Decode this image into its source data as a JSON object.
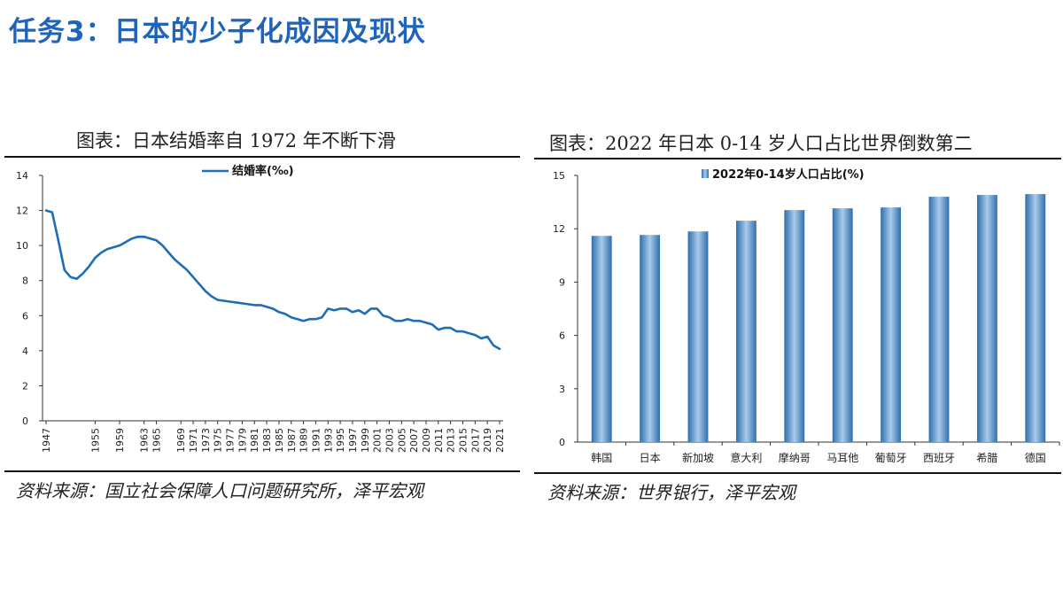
{
  "page": {
    "title": "任务3：日本的少子化成因及现状"
  },
  "left_panel": {
    "caption": "图表：日本结婚率自 1972 年不断下滑",
    "source": "资料来源：国立社会保障人口问题研究所，泽平宏观"
  },
  "right_panel": {
    "caption": "图表：2022 年日本 0-14 岁人口占比世界倒数第二",
    "source": "资料来源：世界银行，泽平宏观"
  },
  "colors": {
    "title": "#1f64b8",
    "line": "#1f6db5",
    "bar_dark": "#2f6fab",
    "bar_light": "#a9cbea"
  },
  "chart_data": [
    {
      "type": "line",
      "title": "",
      "xlabel": "",
      "ylabel": "",
      "ylim": [
        0,
        14
      ],
      "yticks": [
        0,
        2,
        4,
        6,
        8,
        10,
        12,
        14
      ],
      "xlim": [
        1947,
        2021
      ],
      "xticks": [
        1947,
        1955,
        1959,
        1963,
        1965,
        1969,
        1971,
        1973,
        1975,
        1977,
        1979,
        1981,
        1983,
        1985,
        1987,
        1989,
        1991,
        1993,
        1995,
        1997,
        1999,
        2001,
        2003,
        2005,
        2007,
        2009,
        2011,
        2013,
        2015,
        2017,
        2019,
        2021
      ],
      "legend": "top-center",
      "grid": false,
      "series": [
        {
          "name": "结婚率(‰)",
          "x": [
            1947,
            1948,
            1949,
            1950,
            1951,
            1952,
            1953,
            1954,
            1955,
            1956,
            1957,
            1958,
            1959,
            1960,
            1961,
            1962,
            1963,
            1964,
            1965,
            1966,
            1967,
            1968,
            1969,
            1970,
            1971,
            1972,
            1973,
            1974,
            1975,
            1976,
            1977,
            1978,
            1979,
            1980,
            1981,
            1982,
            1983,
            1984,
            1985,
            1986,
            1987,
            1988,
            1989,
            1990,
            1991,
            1992,
            1993,
            1994,
            1995,
            1996,
            1997,
            1998,
            1999,
            2000,
            2001,
            2002,
            2003,
            2004,
            2005,
            2006,
            2007,
            2008,
            2009,
            2010,
            2011,
            2012,
            2013,
            2014,
            2015,
            2016,
            2017,
            2018,
            2019,
            2020,
            2021
          ],
          "values": [
            12.0,
            11.9,
            10.3,
            8.6,
            8.2,
            8.1,
            8.4,
            8.8,
            9.3,
            9.6,
            9.8,
            9.9,
            10.0,
            10.2,
            10.4,
            10.5,
            10.5,
            10.4,
            10.3,
            10.0,
            9.6,
            9.2,
            8.9,
            8.6,
            8.2,
            7.8,
            7.4,
            7.1,
            6.9,
            6.85,
            6.8,
            6.75,
            6.7,
            6.65,
            6.6,
            6.6,
            6.5,
            6.4,
            6.2,
            6.1,
            5.9,
            5.8,
            5.7,
            5.8,
            5.8,
            5.9,
            6.4,
            6.3,
            6.4,
            6.4,
            6.2,
            6.3,
            6.1,
            6.4,
            6.4,
            6.0,
            5.9,
            5.7,
            5.7,
            5.8,
            5.7,
            5.7,
            5.6,
            5.5,
            5.2,
            5.3,
            5.3,
            5.1,
            5.1,
            5.0,
            4.9,
            4.7,
            4.8,
            4.3,
            4.1
          ]
        }
      ]
    },
    {
      "type": "bar",
      "title": "",
      "xlabel": "",
      "ylabel": "",
      "ylim": [
        0,
        15
      ],
      "yticks": [
        0,
        3,
        6,
        9,
        12,
        15
      ],
      "legend": "top-left",
      "grid": false,
      "categories": [
        "韩国",
        "日本",
        "新加坡",
        "意大利",
        "摩纳哥",
        "马耳他",
        "葡萄牙",
        "西班牙",
        "希腊",
        "德国"
      ],
      "series": [
        {
          "name": "2022年0-14岁人口占比(%)",
          "values": [
            11.6,
            11.65,
            11.85,
            12.45,
            13.05,
            13.15,
            13.2,
            13.8,
            13.9,
            13.95
          ]
        }
      ]
    }
  ]
}
